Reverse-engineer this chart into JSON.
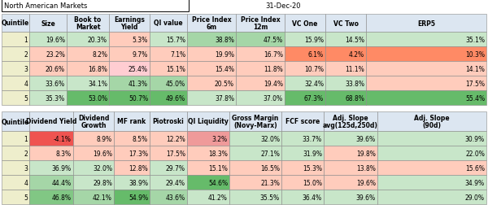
{
  "title_left": "North American Markets",
  "title_right": "31-Dec-20",
  "table1_headers": [
    "Quintile",
    "Size",
    "Book to\nMarket",
    "Earnings\nYield",
    "QI value",
    "Price Index\n6m",
    "Price Index\n12m",
    "VC One",
    "VC Two",
    "ERP5"
  ],
  "table1_data": [
    [
      "1",
      "19.6%",
      "20.3%",
      "5.3%",
      "15.7%",
      "38.8%",
      "47.5%",
      "15.9%",
      "14.5%",
      "35.1%"
    ],
    [
      "2",
      "23.2%",
      "8.2%",
      "9.7%",
      "7.1%",
      "19.9%",
      "16.7%",
      "6.1%",
      "4.2%",
      "10.3%"
    ],
    [
      "3",
      "20.6%",
      "16.8%",
      "25.4%",
      "15.1%",
      "15.4%",
      "11.8%",
      "10.7%",
      "11.1%",
      "14.1%"
    ],
    [
      "4",
      "33.6%",
      "34.1%",
      "41.3%",
      "45.0%",
      "20.5%",
      "19.4%",
      "32.4%",
      "33.8%",
      "17.5%"
    ],
    [
      "5",
      "35.3%",
      "53.0%",
      "50.7%",
      "49.6%",
      "37.8%",
      "37.0%",
      "67.3%",
      "68.8%",
      "55.4%"
    ]
  ],
  "table1_colors": [
    [
      "#eeeecc",
      "#c8e6c9",
      "#c8e6c9",
      "#ffccbc",
      "#c8e6c9",
      "#a5d6a7",
      "#a5d6a7",
      "#c8e6c9",
      "#c8e6c9",
      "#c8e6c9"
    ],
    [
      "#eeeecc",
      "#ffccbc",
      "#ffccbc",
      "#ffccbc",
      "#ffccbc",
      "#ffccbc",
      "#ffccbc",
      "#ff8a65",
      "#ff8a65",
      "#ff8a65"
    ],
    [
      "#eeeecc",
      "#ffccbc",
      "#ffccbc",
      "#ffcdd2",
      "#ffccbc",
      "#ffccbc",
      "#ffccbc",
      "#ffccbc",
      "#ffccbc",
      "#ffccbc"
    ],
    [
      "#eeeecc",
      "#c8e6c9",
      "#c8e6c9",
      "#a5d6a7",
      "#a5d6a7",
      "#ffccbc",
      "#ffccbc",
      "#c8e6c9",
      "#c8e6c9",
      "#ffccbc"
    ],
    [
      "#eeeecc",
      "#c8e6c9",
      "#66bb6a",
      "#66bb6a",
      "#66bb6a",
      "#c8e6c9",
      "#c8e6c9",
      "#66bb6a",
      "#66bb6a",
      "#66bb6a"
    ]
  ],
  "table2_headers": [
    "Quintile",
    "Dividend Yield",
    "Dividend\nGrowth",
    "MF rank",
    "Piotroski",
    "QI Liquidity",
    "Gross Margin\n(Novy-Marx)",
    "FCF score",
    "Adj. Slope\navg(125d,250d)",
    "Adj. Slope\n(90d)"
  ],
  "table2_data": [
    [
      "1",
      "-4.1%",
      "8.9%",
      "8.5%",
      "12.2%",
      "3.2%",
      "32.0%",
      "33.7%",
      "39.6%",
      "30.9%"
    ],
    [
      "2",
      "8.3%",
      "19.6%",
      "17.3%",
      "17.5%",
      "18.3%",
      "27.1%",
      "31.9%",
      "19.8%",
      "22.0%"
    ],
    [
      "3",
      "36.9%",
      "32.0%",
      "12.8%",
      "29.7%",
      "15.1%",
      "16.5%",
      "15.3%",
      "13.8%",
      "15.6%"
    ],
    [
      "4",
      "44.4%",
      "29.8%",
      "38.9%",
      "29.4%",
      "54.6%",
      "21.3%",
      "15.0%",
      "19.6%",
      "34.9%"
    ],
    [
      "5",
      "46.8%",
      "42.1%",
      "54.9%",
      "43.6%",
      "41.2%",
      "35.5%",
      "36.4%",
      "39.6%",
      "29.0%"
    ]
  ],
  "table2_colors": [
    [
      "#eeeecc",
      "#ef5350",
      "#ffccbc",
      "#ffccbc",
      "#ffccbc",
      "#ef9a9a",
      "#c8e6c9",
      "#c8e6c9",
      "#c8e6c9",
      "#c8e6c9"
    ],
    [
      "#eeeecc",
      "#ffccbc",
      "#ffccbc",
      "#ffccbc",
      "#ffccbc",
      "#ffccbc",
      "#c8e6c9",
      "#c8e6c9",
      "#ffccbc",
      "#c8e6c9"
    ],
    [
      "#eeeecc",
      "#c8e6c9",
      "#c8e6c9",
      "#ffccbc",
      "#c8e6c9",
      "#ffccbc",
      "#ffccbc",
      "#ffccbc",
      "#ffccbc",
      "#ffccbc"
    ],
    [
      "#eeeecc",
      "#a5d6a7",
      "#c8e6c9",
      "#c8e6c9",
      "#c8e6c9",
      "#66bb6a",
      "#ffccbc",
      "#ffccbc",
      "#ffccbc",
      "#c8e6c9"
    ],
    [
      "#eeeecc",
      "#81c784",
      "#a5d6a7",
      "#66bb6a",
      "#a5d6a7",
      "#c8e6c9",
      "#c8e6c9",
      "#c8e6c9",
      "#c8e6c9",
      "#c8e6c9"
    ]
  ],
  "header_bg": "#dce6f1",
  "fig_w": 6.0,
  "fig_h": 2.53,
  "dpi": 100
}
